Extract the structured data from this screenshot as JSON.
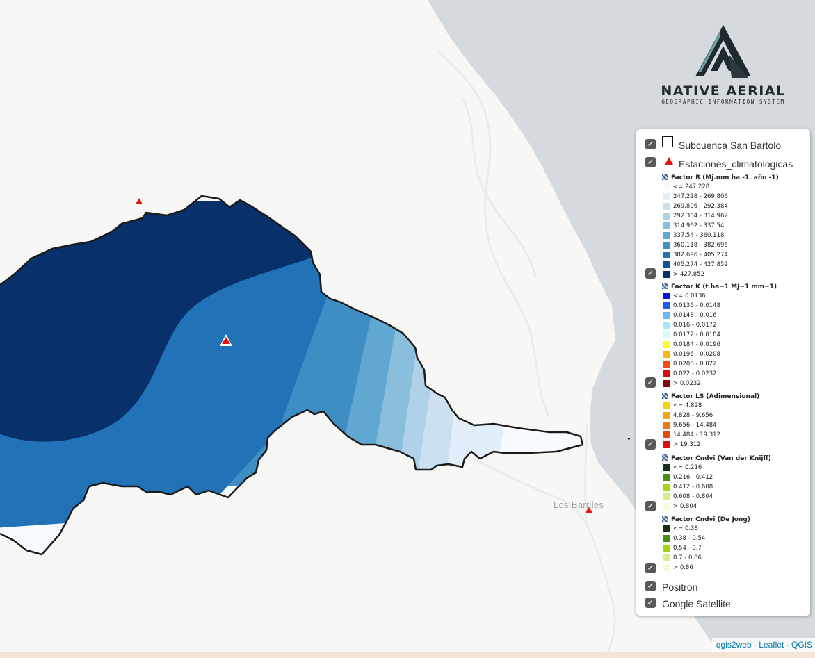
{
  "map": {
    "place_label": "Los Barriles",
    "colors": {
      "land": "#f7f7f5",
      "sea": "#d4dadd",
      "roads": "#ebebea",
      "outline": "#1a1a1a",
      "station": "#e1140f"
    }
  },
  "logo": {
    "name": "NATIVE AERIAL",
    "subtitle": "GEOGRAPHIC INFORMATION SYSTEM"
  },
  "layer_control": {
    "layers": [
      {
        "label": "Subcuenca San Bartolo",
        "checked": true,
        "icon": "square-outline-icon"
      },
      {
        "label": "Estaciones_climatologicas",
        "checked": true,
        "icon": "red-triangle-icon"
      }
    ],
    "legends": [
      {
        "title": "Factor R (Mj.mm ha -1. año -1)",
        "checked": true,
        "items": [
          {
            "label": "<= 247.228",
            "color": "#f7fbff"
          },
          {
            "label": "247.228 - 269.806",
            "color": "#e2eef9"
          },
          {
            "label": "269.806 - 292.384",
            "color": "#cde0f2"
          },
          {
            "label": "292.384 - 314.962",
            "color": "#b0d2e8"
          },
          {
            "label": "314.962 - 337.54",
            "color": "#89bfdd"
          },
          {
            "label": "337.54 - 360.118",
            "color": "#60a7d2"
          },
          {
            "label": "360.118 - 382.696",
            "color": "#3e8ec4"
          },
          {
            "label": "382.696 - 405.274",
            "color": "#2172b6"
          },
          {
            "label": "405.274 - 427.852",
            "color": "#0a549e"
          },
          {
            "label": "> 427.852",
            "color": "#08306b"
          }
        ]
      },
      {
        "title": "Factor K (t ha−1 MJ−1 mm−1)",
        "checked": true,
        "items": [
          {
            "label": "<= 0.0136",
            "color": "#0a14d6"
          },
          {
            "label": "0.0136 - 0.0148",
            "color": "#1f5cf0"
          },
          {
            "label": "0.0148 - 0.016",
            "color": "#6bb6f5"
          },
          {
            "label": "0.016 - 0.0172",
            "color": "#a9e5fb"
          },
          {
            "label": "0.0172 - 0.0184",
            "color": "#d6fbff"
          },
          {
            "label": "0.0184 - 0.0196",
            "color": "#fbf735"
          },
          {
            "label": "0.0196 - 0.0208",
            "color": "#f7b813"
          },
          {
            "label": "0.0208 - 0.022",
            "color": "#f04c12"
          },
          {
            "label": "0.022 - 0.0232",
            "color": "#d40c0c"
          },
          {
            "label": "> 0.0232",
            "color": "#8a0606"
          }
        ]
      },
      {
        "title": "Factor LS (Adimensional)",
        "checked": true,
        "items": [
          {
            "label": "<= 4.828",
            "color": "#f4d20a"
          },
          {
            "label": "4.828 - 9.656",
            "color": "#f0a814"
          },
          {
            "label": "9.656 - 14.484",
            "color": "#ea7a12"
          },
          {
            "label": "14.484 - 19.312",
            "color": "#e04a0e"
          },
          {
            "label": "> 19.312",
            "color": "#d40f0f"
          }
        ]
      },
      {
        "title": "Factor Cndvi (Van der Knijff)",
        "checked": true,
        "items": [
          {
            "label": "<= 0.216",
            "color": "#16311a"
          },
          {
            "label": "0.216 - 0.412",
            "color": "#4a8a15"
          },
          {
            "label": "0.412 - 0.608",
            "color": "#9fd615"
          },
          {
            "label": "0.608 - 0.804",
            "color": "#d4ef8a"
          },
          {
            "label": "> 0.804",
            "color": "#fbf9dc"
          }
        ]
      },
      {
        "title": "Factor Cndvi (De Jong)",
        "checked": true,
        "items": [
          {
            "label": "<= 0.38",
            "color": "#16311a"
          },
          {
            "label": "0.38 - 0.54",
            "color": "#4a8a15"
          },
          {
            "label": "0.54 - 0.7",
            "color": "#9fd615"
          },
          {
            "label": "0.7 - 0.86",
            "color": "#d4ef8a"
          },
          {
            "label": "> 0.86",
            "color": "#fbf9dc"
          }
        ]
      }
    ],
    "base_layers": [
      {
        "label": "Positron",
        "checked": true
      },
      {
        "label": "Google Satellite",
        "checked": true
      }
    ]
  },
  "attribution": {
    "links": [
      "qgis2web",
      "Leaflet",
      "QGIS"
    ],
    "separator": "·"
  }
}
